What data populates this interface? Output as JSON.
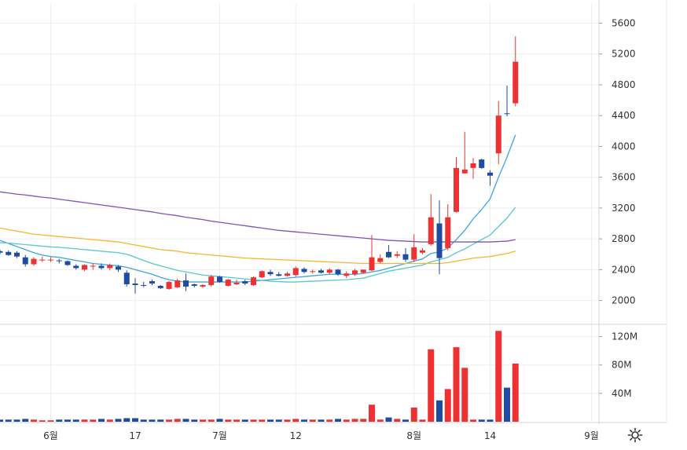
{
  "chart_data": {
    "type": "candlestick",
    "price_axis": {
      "ticks": [
        "5600",
        "5200",
        "4800",
        "4400",
        "4000",
        "3600",
        "3200",
        "2800",
        "2400",
        "2000"
      ],
      "ylim": [
        1700,
        5850
      ]
    },
    "volume_axis": {
      "ticks": [
        "120M",
        "80M",
        "40M"
      ],
      "ylim": [
        0,
        135
      ]
    },
    "time_axis": {
      "labels": [
        "6월",
        "17",
        "7월",
        "12",
        "8월",
        "14",
        "9월"
      ]
    },
    "candles": [
      {
        "o": 2640,
        "h": 2660,
        "l": 2600,
        "c": 2620,
        "v": 3,
        "up": false
      },
      {
        "o": 2630,
        "h": 2650,
        "l": 2580,
        "c": 2590,
        "v": 3,
        "up": false
      },
      {
        "o": 2620,
        "h": 2640,
        "l": 2550,
        "c": 2570,
        "v": 3,
        "up": false
      },
      {
        "o": 2560,
        "h": 2590,
        "l": 2440,
        "c": 2470,
        "v": 4,
        "up": false
      },
      {
        "o": 2470,
        "h": 2560,
        "l": 2450,
        "c": 2540,
        "v": 3,
        "up": true
      },
      {
        "o": 2530,
        "h": 2570,
        "l": 2500,
        "c": 2520,
        "v": 2,
        "up": true
      },
      {
        "o": 2520,
        "h": 2560,
        "l": 2500,
        "c": 2530,
        "v": 2,
        "up": true
      },
      {
        "o": 2520,
        "h": 2540,
        "l": 2480,
        "c": 2510,
        "v": 3,
        "up": false
      },
      {
        "o": 2510,
        "h": 2520,
        "l": 2450,
        "c": 2460,
        "v": 3,
        "up": false
      },
      {
        "o": 2450,
        "h": 2470,
        "l": 2400,
        "c": 2420,
        "v": 3,
        "up": false
      },
      {
        "o": 2400,
        "h": 2470,
        "l": 2380,
        "c": 2460,
        "v": 3,
        "up": true
      },
      {
        "o": 2440,
        "h": 2480,
        "l": 2400,
        "c": 2450,
        "v": 3,
        "up": true
      },
      {
        "o": 2450,
        "h": 2480,
        "l": 2400,
        "c": 2420,
        "v": 4,
        "up": false
      },
      {
        "o": 2420,
        "h": 2480,
        "l": 2390,
        "c": 2460,
        "v": 3,
        "up": true
      },
      {
        "o": 2440,
        "h": 2460,
        "l": 2370,
        "c": 2400,
        "v": 4,
        "up": false
      },
      {
        "o": 2360,
        "h": 2390,
        "l": 2180,
        "c": 2210,
        "v": 5,
        "up": false
      },
      {
        "o": 2220,
        "h": 2290,
        "l": 2090,
        "c": 2200,
        "v": 5,
        "up": false
      },
      {
        "o": 2200,
        "h": 2240,
        "l": 2170,
        "c": 2200,
        "v": 3,
        "up": false
      },
      {
        "o": 2250,
        "h": 2270,
        "l": 2200,
        "c": 2220,
        "v": 3,
        "up": false
      },
      {
        "o": 2190,
        "h": 2200,
        "l": 2150,
        "c": 2160,
        "v": 3,
        "up": false
      },
      {
        "o": 2150,
        "h": 2250,
        "l": 2140,
        "c": 2240,
        "v": 3,
        "up": true
      },
      {
        "o": 2170,
        "h": 2280,
        "l": 2160,
        "c": 2260,
        "v": 4,
        "up": true
      },
      {
        "o": 2260,
        "h": 2350,
        "l": 2120,
        "c": 2180,
        "v": 4,
        "up": false
      },
      {
        "o": 2210,
        "h": 2220,
        "l": 2170,
        "c": 2190,
        "v": 3,
        "up": false
      },
      {
        "o": 2180,
        "h": 2210,
        "l": 2160,
        "c": 2200,
        "v": 3,
        "up": true
      },
      {
        "o": 2200,
        "h": 2330,
        "l": 2180,
        "c": 2310,
        "v": 3,
        "up": true
      },
      {
        "o": 2310,
        "h": 2320,
        "l": 2230,
        "c": 2240,
        "v": 4,
        "up": false
      },
      {
        "o": 2190,
        "h": 2280,
        "l": 2180,
        "c": 2270,
        "v": 3,
        "up": true
      },
      {
        "o": 2230,
        "h": 2270,
        "l": 2200,
        "c": 2210,
        "v": 3,
        "up": true
      },
      {
        "o": 2250,
        "h": 2270,
        "l": 2200,
        "c": 2220,
        "v": 3,
        "up": false
      },
      {
        "o": 2200,
        "h": 2310,
        "l": 2190,
        "c": 2300,
        "v": 3,
        "up": true
      },
      {
        "o": 2300,
        "h": 2390,
        "l": 2290,
        "c": 2380,
        "v": 3,
        "up": true
      },
      {
        "o": 2370,
        "h": 2400,
        "l": 2320,
        "c": 2340,
        "v": 3,
        "up": false
      },
      {
        "o": 2340,
        "h": 2370,
        "l": 2310,
        "c": 2320,
        "v": 3,
        "up": false
      },
      {
        "o": 2320,
        "h": 2370,
        "l": 2310,
        "c": 2350,
        "v": 3,
        "up": true
      },
      {
        "o": 2330,
        "h": 2440,
        "l": 2310,
        "c": 2420,
        "v": 4,
        "up": true
      },
      {
        "o": 2410,
        "h": 2430,
        "l": 2350,
        "c": 2370,
        "v": 3,
        "up": false
      },
      {
        "o": 2380,
        "h": 2400,
        "l": 2350,
        "c": 2370,
        "v": 3,
        "up": true
      },
      {
        "o": 2390,
        "h": 2410,
        "l": 2350,
        "c": 2360,
        "v": 3,
        "up": false
      },
      {
        "o": 2360,
        "h": 2420,
        "l": 2340,
        "c": 2400,
        "v": 3,
        "up": true
      },
      {
        "o": 2400,
        "h": 2410,
        "l": 2320,
        "c": 2340,
        "v": 4,
        "up": false
      },
      {
        "o": 2320,
        "h": 2380,
        "l": 2290,
        "c": 2350,
        "v": 3,
        "up": true
      },
      {
        "o": 2340,
        "h": 2410,
        "l": 2320,
        "c": 2390,
        "v": 4,
        "up": true
      },
      {
        "o": 2360,
        "h": 2400,
        "l": 2350,
        "c": 2400,
        "v": 4,
        "up": true
      },
      {
        "o": 2390,
        "h": 2850,
        "l": 2380,
        "c": 2560,
        "v": 24,
        "up": true
      },
      {
        "o": 2500,
        "h": 2600,
        "l": 2480,
        "c": 2550,
        "v": 3,
        "up": true
      },
      {
        "o": 2560,
        "h": 2720,
        "l": 2550,
        "c": 2630,
        "v": 6,
        "up": false
      },
      {
        "o": 2600,
        "h": 2640,
        "l": 2550,
        "c": 2580,
        "v": 4,
        "up": true
      },
      {
        "o": 2600,
        "h": 2680,
        "l": 2500,
        "c": 2530,
        "v": 3,
        "up": false
      },
      {
        "o": 2530,
        "h": 2860,
        "l": 2500,
        "c": 2690,
        "v": 20,
        "up": true
      },
      {
        "o": 2620,
        "h": 2680,
        "l": 2600,
        "c": 2650,
        "v": 3,
        "up": true
      },
      {
        "o": 2730,
        "h": 3380,
        "l": 2710,
        "c": 3080,
        "v": 102,
        "up": true
      },
      {
        "o": 3000,
        "h": 3300,
        "l": 2340,
        "c": 2550,
        "v": 30,
        "up": false
      },
      {
        "o": 2680,
        "h": 3250,
        "l": 2650,
        "c": 3080,
        "v": 46,
        "up": true
      },
      {
        "o": 3150,
        "h": 3860,
        "l": 3140,
        "c": 3720,
        "v": 105,
        "up": true
      },
      {
        "o": 3700,
        "h": 4190,
        "l": 3650,
        "c": 3650,
        "v": 76,
        "up": true
      },
      {
        "o": 3720,
        "h": 3850,
        "l": 3580,
        "c": 3780,
        "v": 3,
        "up": true
      },
      {
        "o": 3720,
        "h": 3840,
        "l": 3710,
        "c": 3830,
        "v": 3,
        "up": false
      },
      {
        "o": 3660,
        "h": 3690,
        "l": 3490,
        "c": 3620,
        "v": 3,
        "up": false
      },
      {
        "o": 3910,
        "h": 4590,
        "l": 3770,
        "c": 4400,
        "v": 128,
        "up": true
      },
      {
        "o": 4430,
        "h": 4790,
        "l": 4390,
        "c": 4420,
        "v": 48,
        "up": false
      },
      {
        "o": 4560,
        "h": 5430,
        "l": 4520,
        "c": 5100,
        "v": 82,
        "up": true
      }
    ],
    "ma_lines": [
      {
        "color": "#3ba6e0",
        "values": [
          2780,
          2740,
          2700,
          2660,
          2620,
          2590,
          2570,
          2560,
          2540,
          2520,
          2500,
          2480,
          2470,
          2460,
          2450,
          2430,
          2400,
          2370,
          2340,
          2300,
          2270,
          2250,
          2240,
          2240,
          2240,
          2240,
          2240,
          2240,
          2240,
          2240,
          2250,
          2260,
          2270,
          2280,
          2290,
          2300,
          2310,
          2320,
          2330,
          2340,
          2340,
          2340,
          2340,
          2350,
          2370,
          2390,
          2420,
          2450,
          2480,
          2510,
          2540,
          2610,
          2630,
          2680,
          2790,
          2910,
          3060,
          3180,
          3320,
          3600,
          3860,
          4150
        ]
      },
      {
        "color": "#5ac8cc",
        "values": [
          2750,
          2745,
          2735,
          2725,
          2715,
          2705,
          2695,
          2690,
          2680,
          2670,
          2660,
          2650,
          2640,
          2630,
          2620,
          2600,
          2560,
          2520,
          2480,
          2450,
          2420,
          2390,
          2370,
          2350,
          2330,
          2320,
          2310,
          2300,
          2290,
          2280,
          2270,
          2260,
          2250,
          2245,
          2240,
          2240,
          2245,
          2250,
          2255,
          2260,
          2265,
          2270,
          2280,
          2290,
          2320,
          2350,
          2380,
          2400,
          2420,
          2440,
          2460,
          2500,
          2530,
          2560,
          2620,
          2670,
          2730,
          2790,
          2850,
          2960,
          3070,
          3210
        ]
      },
      {
        "color": "#f5b731",
        "values": [
          2940,
          2920,
          2900,
          2880,
          2860,
          2850,
          2840,
          2830,
          2820,
          2810,
          2800,
          2790,
          2780,
          2770,
          2760,
          2740,
          2720,
          2700,
          2680,
          2660,
          2650,
          2640,
          2620,
          2610,
          2600,
          2590,
          2580,
          2570,
          2560,
          2550,
          2545,
          2540,
          2535,
          2530,
          2525,
          2520,
          2515,
          2510,
          2505,
          2500,
          2495,
          2490,
          2485,
          2480,
          2480,
          2480,
          2480,
          2480,
          2480,
          2480,
          2480,
          2480,
          2480,
          2490,
          2510,
          2530,
          2550,
          2560,
          2570,
          2590,
          2610,
          2640
        ]
      },
      {
        "color": "#7e55b4",
        "values": [
          3410,
          3395,
          3380,
          3370,
          3355,
          3340,
          3330,
          3315,
          3300,
          3285,
          3270,
          3255,
          3240,
          3225,
          3210,
          3195,
          3180,
          3165,
          3150,
          3130,
          3115,
          3100,
          3080,
          3065,
          3050,
          3030,
          3015,
          3000,
          2985,
          2970,
          2955,
          2940,
          2925,
          2910,
          2900,
          2890,
          2880,
          2870,
          2860,
          2850,
          2840,
          2830,
          2820,
          2810,
          2800,
          2790,
          2780,
          2775,
          2770,
          2765,
          2760,
          2760,
          2760,
          2760,
          2760,
          2760,
          2760,
          2760,
          2760,
          2765,
          2770,
          2790
        ]
      }
    ],
    "colors": {
      "up": "#ee3233",
      "down": "#1e4ba3",
      "grid": "#eeeeee",
      "axis_text": "#333333"
    }
  }
}
